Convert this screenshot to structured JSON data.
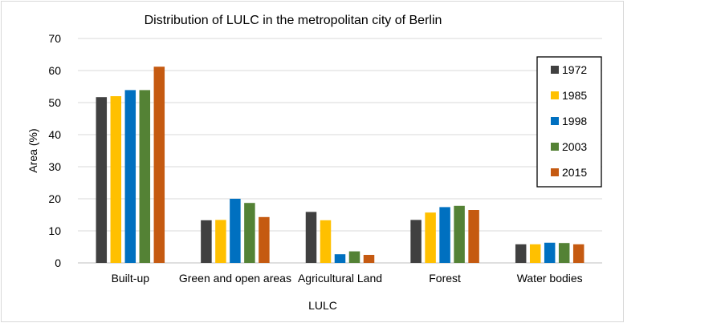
{
  "chart_data": {
    "type": "bar",
    "title": "Distribution of LULC in the metropolitan city of Berlin",
    "xlabel": "LULC",
    "ylabel": "Area (%)",
    "ylim": [
      0,
      70
    ],
    "yticks": [
      0,
      10,
      20,
      30,
      40,
      50,
      60,
      70
    ],
    "grid": true,
    "legend_position": "right",
    "categories": [
      "Built-up",
      "Green and open areas",
      "Agricultural Land",
      "Forest",
      "Water bodies"
    ],
    "series": [
      {
        "name": "1972",
        "color": "#404040",
        "values": [
          51.7,
          13.3,
          15.9,
          13.4,
          5.8
        ]
      },
      {
        "name": "1985",
        "color": "#ffc000",
        "values": [
          52.0,
          13.4,
          13.3,
          15.7,
          5.8
        ]
      },
      {
        "name": "1998",
        "color": "#0070c0",
        "values": [
          53.9,
          20.0,
          2.7,
          17.4,
          6.3
        ]
      },
      {
        "name": "2003",
        "color": "#548235",
        "values": [
          53.9,
          18.7,
          3.6,
          17.8,
          6.2
        ]
      },
      {
        "name": "2015",
        "color": "#c55a11",
        "values": [
          61.2,
          14.3,
          2.5,
          16.5,
          5.8
        ]
      }
    ]
  }
}
